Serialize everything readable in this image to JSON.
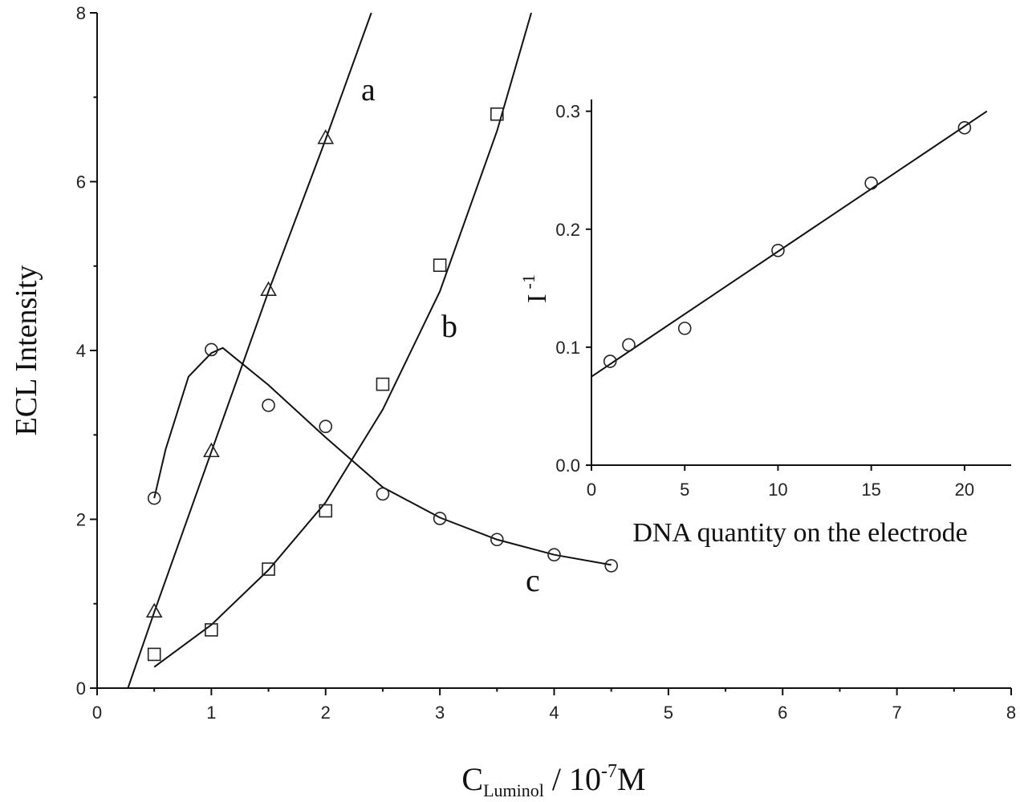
{
  "chart_data": [
    {
      "type": "scatter",
      "x_label": {
        "main": "C",
        "sub": "Luminol",
        "mid": " / 10",
        "sup": "-7",
        "end": "M"
      },
      "y_label": "ECL  Intensity",
      "xlim": [
        0,
        8
      ],
      "ylim": [
        0,
        8
      ],
      "xticks": [
        0,
        1,
        2,
        3,
        4,
        5,
        6,
        7,
        8
      ],
      "yticks": [
        0,
        2,
        4,
        6,
        8
      ],
      "series": [
        {
          "name": "a",
          "marker": "triangle",
          "x": [
            0.5,
            1,
            1.5,
            2
          ],
          "values": [
            0.91,
            2.81,
            4.72,
            6.52
          ],
          "fit_x": [
            0.27,
            0.5,
            1,
            1.5,
            2,
            2.4
          ],
          "fit_values": [
            0,
            0.9,
            2.8,
            4.7,
            6.5,
            8
          ]
        },
        {
          "name": "b",
          "marker": "square",
          "x": [
            0.5,
            1,
            1.5,
            2,
            2.5,
            3,
            3.5
          ],
          "values": [
            0.4,
            0.69,
            1.41,
            2.1,
            3.6,
            5.01,
            6.8
          ],
          "fit_x": [
            0.5,
            1,
            1.5,
            2,
            2.5,
            3,
            3.5,
            3.8
          ],
          "fit_values": [
            0.25,
            0.75,
            1.4,
            2.2,
            3.3,
            4.7,
            6.6,
            8
          ]
        },
        {
          "name": "c",
          "marker": "circle",
          "x": [
            0.5,
            1,
            1.5,
            2,
            2.5,
            3,
            3.5,
            4,
            4.5
          ],
          "values": [
            2.25,
            4.01,
            3.35,
            3.1,
            2.3,
            2.01,
            1.76,
            1.58,
            1.45
          ],
          "fit_x": [
            0.5,
            0.6,
            0.8,
            1,
            1.1,
            1.5,
            2,
            2.5,
            3,
            3.5,
            4,
            4.5
          ],
          "fit_values": [
            2.25,
            2.83,
            3.69,
            3.97,
            4.03,
            3.59,
            2.97,
            2.38,
            2.02,
            1.76,
            1.58,
            1.46
          ]
        }
      ]
    },
    {
      "type": "scatter",
      "x_label": "DNA quantity on the electrode",
      "y_label": {
        "main": "I",
        "sup": "-1"
      },
      "xlim": [
        0,
        22.5
      ],
      "ylim": [
        0,
        0.31
      ],
      "xticks": [
        0,
        5,
        10,
        15,
        20
      ],
      "yticks": [
        {
          "value": 0,
          "label": "0.0"
        },
        0.1,
        0.2,
        0.3
      ],
      "series": [
        {
          "marker": "circle",
          "x": [
            1,
            2,
            5,
            10,
            15,
            20
          ],
          "values": [
            0.088,
            0.102,
            0.116,
            0.182,
            0.239,
            0.286
          ],
          "fit_x": [
            0,
            21.2
          ],
          "fit_values": [
            0.075,
            0.3
          ]
        }
      ]
    }
  ]
}
